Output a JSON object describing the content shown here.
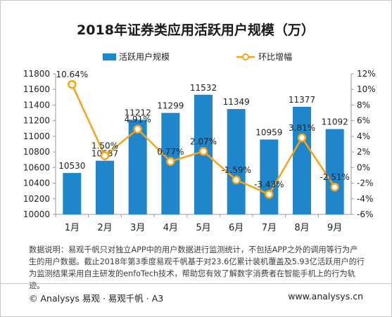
{
  "chart_data": {
    "type": "bar+line",
    "title": "2018年证券类应用活跃用户规模（万）",
    "categories": [
      "1月",
      "2月",
      "3月",
      "4月",
      "5月",
      "6月",
      "7月",
      "8月",
      "9月"
    ],
    "series": [
      {
        "name": "活跃用户规模",
        "type": "bar",
        "axis": "left",
        "color": "#1f86cc",
        "values": [
          10530,
          10687,
          11212,
          11299,
          11532,
          11349,
          10959,
          11377,
          11092
        ],
        "labels": [
          "10530",
          "10687",
          "11212",
          "11299",
          "11532",
          "11349",
          "10959",
          "11377",
          "11092"
        ]
      },
      {
        "name": "环比增幅",
        "type": "line",
        "axis": "right",
        "color": "#f5a31a",
        "values": [
          10.64,
          1.5,
          4.91,
          0.77,
          2.07,
          -1.59,
          -3.43,
          3.81,
          -2.51
        ],
        "labels": [
          "10.64%",
          "1.50%",
          "4.91%",
          "0.77%",
          "2.07%",
          "-1.59%",
          "-3.43%",
          "3.81%",
          "-2.51%"
        ]
      }
    ],
    "left_axis": {
      "ylim": [
        10000,
        11800
      ],
      "ticks": [
        10000,
        10200,
        10400,
        10600,
        10800,
        11000,
        11200,
        11400,
        11600,
        11800
      ],
      "tick_labels": [
        "10000",
        "10200",
        "10400",
        "10600",
        "10800",
        "11000",
        "11200",
        "11400",
        "11600",
        "11800"
      ]
    },
    "right_axis": {
      "ylim": [
        -6,
        12
      ],
      "ticks": [
        -6,
        -4,
        -2,
        0,
        2,
        4,
        6,
        8,
        10,
        12
      ],
      "tick_labels": [
        "-6%",
        "-4%",
        "-2%",
        "0%",
        "2%",
        "4%",
        "6%",
        "8%",
        "10%",
        "12%"
      ]
    },
    "grid": false,
    "legend": "top-center"
  },
  "note": "数据说明：易观千帆只对独立APP中的用户数据进行监测统计，不包括APP之外的调用等行为产生的用户数据。截止2018年第3季度易观千帆基于对23.6亿累计装机覆盖及5.93亿活跃用户的行为监测结果采用自主研发的enfoTech技术，帮助您有效了解数字消费者在智能手机上的行为轨迹。",
  "footer": {
    "left": "© Analysys 易观 · 易观千帆 · A3",
    "right": "www.analysys.cn"
  }
}
